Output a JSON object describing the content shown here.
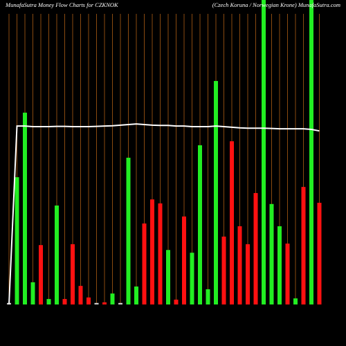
{
  "chart_data": {
    "type": "bar",
    "title": "MunafaSutra  Money Flow  Charts for CZKNOK",
    "subtitle": "(Czech Koruna  / Norwegian  Krone) MunafaSutra.com",
    "categories": [
      null,
      null,
      null,
      null,
      null,
      null,
      null,
      null,
      null,
      null,
      null,
      null,
      null,
      null,
      null,
      null,
      null,
      null,
      null,
      null,
      null,
      null,
      null,
      null,
      null,
      null,
      null,
      null,
      null,
      null,
      null,
      null,
      null,
      null,
      null,
      null,
      null,
      null,
      null,
      null
    ],
    "series": [
      {
        "type": "bar",
        "values": [
          0.5,
          41.8,
          63.0,
          7.3,
          19.5,
          1.8,
          32.5,
          1.8,
          19.8,
          6.1,
          2.3,
          0.5,
          0.7,
          3.6,
          0.5,
          48.2,
          5.9,
          26.6,
          34.5,
          33.2,
          17.9,
          1.6,
          28.9,
          17.0,
          52.3,
          5.0,
          73.4,
          22.3,
          53.6,
          25.7,
          19.8,
          36.6,
          100,
          33.0,
          25.7,
          20.0,
          2.0,
          38.6,
          100,
          33.4
        ],
        "colors": [
          "#cccccc",
          "#22ee22",
          "#22ee22",
          "#22ee22",
          "#ff1111",
          "#22ee22",
          "#22ee22",
          "#ff1111",
          "#ff1111",
          "#ff1111",
          "#ff1111",
          "#cccccc",
          "#ff1111",
          "#22ee22",
          "#cccccc",
          "#22ee22",
          "#22ee22",
          "#ff1111",
          "#ff1111",
          "#ff1111",
          "#22ee22",
          "#ff1111",
          "#ff1111",
          "#22ee22",
          "#22ee22",
          "#22ee22",
          "#22ee22",
          "#ff1111",
          "#ff1111",
          "#ff1111",
          "#ff1111",
          "#ff1111",
          "#22ee22",
          "#22ee22",
          "#22ee22",
          "#ff1111",
          "#22ee22",
          "#ff1111",
          "#22ee22",
          "#ff1111"
        ]
      },
      {
        "type": "line",
        "color": "#ffffff",
        "values": [
          0,
          58.6,
          58.6,
          58.4,
          58.4,
          58.4,
          58.5,
          58.5,
          58.4,
          58.4,
          58.4,
          58.5,
          58.6,
          58.7,
          58.9,
          59.1,
          59.3,
          59.1,
          58.9,
          58.8,
          58.8,
          58.6,
          58.6,
          58.4,
          58.4,
          58.4,
          58.6,
          58.4,
          58.2,
          58.0,
          57.9,
          57.9,
          57.9,
          57.8,
          57.7,
          57.7,
          57.7,
          57.7,
          57.5,
          57.0
        ]
      }
    ],
    "ylim": [
      0,
      100
    ],
    "grid_color": "#8a4a10",
    "background": "#000000"
  }
}
